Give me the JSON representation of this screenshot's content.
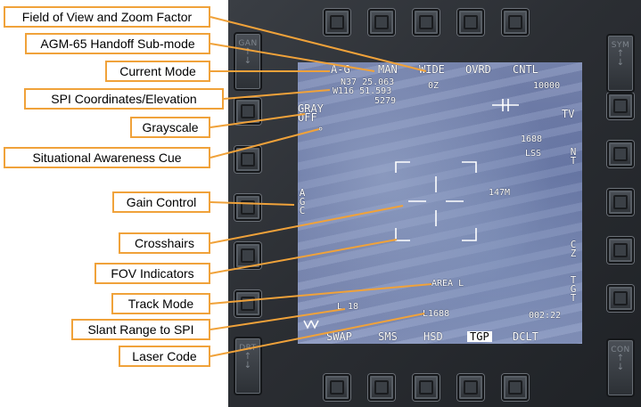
{
  "accent_color": "#f0a23a",
  "callouts": {
    "fov_zoom": "Field of View and Zoom Factor",
    "agm_handoff": "AGM-65 Handoff Sub-mode",
    "current_mode": "Current Mode",
    "spi_coords": "SPI Coordinates/Elevation",
    "grayscale": "Grayscale",
    "sa_cue": "Situational Awareness Cue",
    "gain": "Gain Control",
    "crosshairs": "Crosshairs",
    "fov_indicators": "FOV Indicators",
    "track_mode": "Track Mode",
    "slant_range": "Slant Range to SPI",
    "laser_code": "Laser Code"
  },
  "bezel": {
    "left_rocker": "GAN",
    "left_rocker_bottom": "DRT",
    "right_rocker_top": "SYM",
    "right_rocker_bottom": "CON",
    "arrow_up": "↑",
    "arrow_down": "↓"
  },
  "mfd": {
    "top": {
      "mode": "A-G",
      "handoff": "MAN",
      "fov": "WIDE",
      "override": "OVRD",
      "control": "CNTL"
    },
    "coords": {
      "lat": "N37 25.063",
      "lon": "W116 51.593",
      "elevation": "5279"
    },
    "zulu": "0Z",
    "altitude": "10000",
    "tv_label": "TV",
    "grayscale_1": "GRAY",
    "grayscale_2": "OFF",
    "sa_cue": "°",
    "laser_code_right": "1688",
    "lss": "LSS",
    "nt": "NT",
    "range_marker": "147M",
    "agc": "AGC",
    "cz": "CZ",
    "tgt": "TGT",
    "track_mode": "AREA  L",
    "slant_range": "L 18",
    "laser_code": "L1688",
    "time": "002:22",
    "bottom": {
      "swap": "SWAP",
      "sms": "SMS",
      "hsd": "HSD",
      "tgp": "TGP",
      "dclt": "DCLT"
    }
  }
}
